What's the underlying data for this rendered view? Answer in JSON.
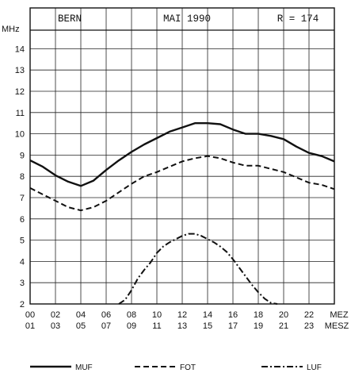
{
  "chart_data": {
    "type": "line",
    "header": {
      "station": "BERN",
      "period": "MAI 1990",
      "ssn": "R = 174"
    },
    "y_unit": "MHz",
    "ylim": [
      2,
      15
    ],
    "y_ticks": [
      "2",
      "3",
      "4",
      "5",
      "6",
      "7",
      "8",
      "9",
      "10",
      "11",
      "12",
      "13",
      "14"
    ],
    "xlim": [
      0,
      24
    ],
    "x_ticks_row1": [
      "00",
      "02",
      "04",
      "06",
      "08",
      "10",
      "12",
      "14",
      "16",
      "18",
      "20",
      "22"
    ],
    "x_ticks_row2": [
      "01",
      "03",
      "05",
      "07",
      "09",
      "11",
      "13",
      "15",
      "17",
      "19",
      "21",
      "23"
    ],
    "x_axis_labels": [
      "MEZ",
      "MESZ"
    ],
    "grid": true,
    "legend_position": "bottom",
    "series": [
      {
        "name": "MUF",
        "style": "solid",
        "x": [
          0,
          1,
          2,
          3,
          4,
          5,
          6,
          7,
          8,
          9,
          10,
          11,
          12,
          13,
          14,
          15,
          16,
          17,
          18,
          19,
          20,
          21,
          22,
          23,
          24
        ],
        "y": [
          8.75,
          8.45,
          8.05,
          7.75,
          7.55,
          7.8,
          8.3,
          8.75,
          9.15,
          9.5,
          9.8,
          10.1,
          10.3,
          10.5,
          10.5,
          10.45,
          10.2,
          10.0,
          10.0,
          9.9,
          9.75,
          9.4,
          9.1,
          8.95,
          8.7
        ]
      },
      {
        "name": "FOT",
        "style": "dashed",
        "x": [
          0,
          1,
          2,
          3,
          4,
          5,
          6,
          7,
          8,
          9,
          10,
          11,
          12,
          13,
          14,
          15,
          16,
          17,
          18,
          19,
          20,
          21,
          22,
          23,
          24
        ],
        "y": [
          7.45,
          7.15,
          6.85,
          6.55,
          6.4,
          6.55,
          6.85,
          7.25,
          7.65,
          8.0,
          8.2,
          8.45,
          8.7,
          8.85,
          8.95,
          8.85,
          8.65,
          8.5,
          8.5,
          8.35,
          8.2,
          7.95,
          7.7,
          7.6,
          7.4
        ]
      },
      {
        "name": "LUF",
        "style": "dash-dot",
        "x": [
          7.0,
          7.5,
          8.0,
          8.5,
          9.0,
          9.5,
          10.0,
          10.5,
          11.0,
          11.5,
          12.0,
          12.5,
          13.0,
          13.5,
          14.0,
          14.5,
          15.0,
          15.5,
          16.0,
          16.5,
          17.0,
          17.5,
          18.0,
          18.5,
          19.0,
          19.5
        ],
        "y": [
          2.0,
          2.2,
          2.65,
          3.2,
          3.6,
          3.95,
          4.4,
          4.7,
          4.9,
          5.05,
          5.2,
          5.3,
          5.3,
          5.2,
          5.05,
          4.9,
          4.7,
          4.45,
          4.1,
          3.7,
          3.3,
          2.9,
          2.55,
          2.25,
          2.05,
          2.0
        ]
      }
    ]
  }
}
